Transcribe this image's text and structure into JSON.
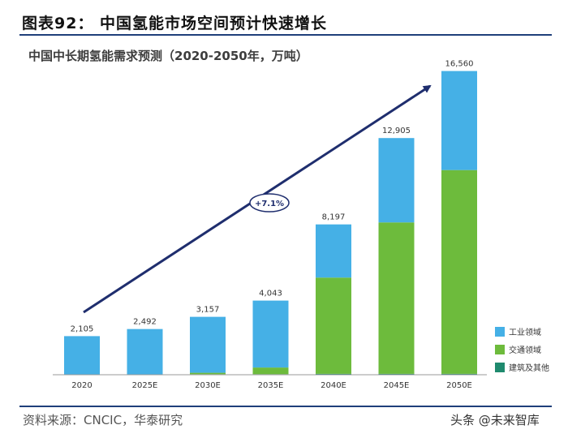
{
  "figure_title": "图表92： 中国氢能市场空间预计快速增长",
  "source_text": "资料来源：CNCIC，华泰研究",
  "watermark_text": "头条 @未来智库",
  "chart_data": {
    "type": "bar",
    "stacked": true,
    "title": "中国中长期氢能需求预测（2020-2050年，万吨）",
    "categories": [
      "2020",
      "2025E",
      "2030E",
      "2035E",
      "2040E",
      "2045E",
      "2050E"
    ],
    "series": [
      {
        "name": "工业领域",
        "color": "#45b0e6",
        "values": [
          2105,
          2492,
          3050,
          3650,
          2900,
          4600,
          5400
        ]
      },
      {
        "name": "交通领域",
        "color": "#6dbb3c",
        "values": [
          0,
          0,
          80,
          363,
          5247,
          8255,
          11110
        ]
      },
      {
        "name": "建筑及其他",
        "color": "#1f8a6e",
        "values": [
          0,
          0,
          27,
          30,
          50,
          50,
          50
        ]
      }
    ],
    "totals": [
      "2,105",
      "2,492",
      "3,157",
      "4,043",
      "8,197",
      "12,905",
      "16,560"
    ],
    "ylim": [
      0,
      18000
    ],
    "annotation": "+7.1%",
    "legend_position": "right"
  }
}
